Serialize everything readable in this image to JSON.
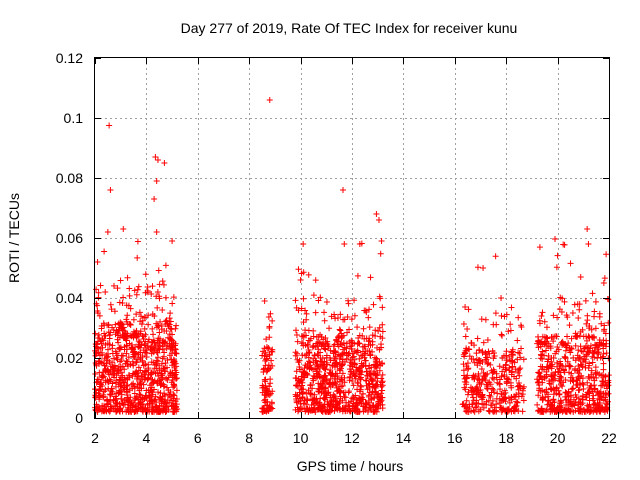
{
  "chart_data": {
    "type": "scatter",
    "title": "Day 277 of 2019, Rate Of TEC Index for receiver kunu",
    "xlabel": "GPS time / hours",
    "ylabel": "ROTI / TECUs",
    "xlim": [
      2,
      22
    ],
    "ylim": [
      0,
      0.12
    ],
    "grid": true,
    "marker": "+",
    "color": "#ff0000",
    "x_ticks": [
      2,
      4,
      6,
      8,
      10,
      12,
      14,
      16,
      18,
      20,
      22
    ],
    "x_tick_labels": [
      "2",
      "4",
      "6",
      "8",
      "10",
      "12",
      "14",
      "16",
      "18",
      "20",
      "22"
    ],
    "y_ticks": [
      0,
      0.02,
      0.04,
      0.06,
      0.08,
      0.1,
      0.12
    ],
    "y_tick_labels": [
      "0",
      "0.02",
      "0.04",
      "0.06",
      "0.08",
      "0.1",
      "0.12"
    ],
    "clusters": [
      {
        "x_range": [
          2.0,
          5.2
        ],
        "y_typical_max": 0.035,
        "count": 900
      },
      {
        "x_range": [
          8.5,
          8.9
        ],
        "y_typical_max": 0.025,
        "count": 90
      },
      {
        "x_range": [
          9.8,
          13.2
        ],
        "y_typical_max": 0.03,
        "count": 800
      },
      {
        "x_range": [
          16.3,
          18.7
        ],
        "y_typical_max": 0.025,
        "count": 350
      },
      {
        "x_range": [
          19.2,
          22.0
        ],
        "y_typical_max": 0.03,
        "count": 600
      }
    ],
    "notable_points": [
      {
        "x": 2.55,
        "y": 0.0975
      },
      {
        "x": 2.6,
        "y": 0.076
      },
      {
        "x": 2.5,
        "y": 0.062
      },
      {
        "x": 3.1,
        "y": 0.063
      },
      {
        "x": 2.1,
        "y": 0.052
      },
      {
        "x": 4.35,
        "y": 0.087
      },
      {
        "x": 4.45,
        "y": 0.086
      },
      {
        "x": 4.7,
        "y": 0.085
      },
      {
        "x": 4.4,
        "y": 0.079
      },
      {
        "x": 4.3,
        "y": 0.073
      },
      {
        "x": 4.4,
        "y": 0.062
      },
      {
        "x": 5.0,
        "y": 0.059
      },
      {
        "x": 8.8,
        "y": 0.106
      },
      {
        "x": 8.6,
        "y": 0.039
      },
      {
        "x": 10.1,
        "y": 0.058
      },
      {
        "x": 10.0,
        "y": 0.046
      },
      {
        "x": 11.65,
        "y": 0.076
      },
      {
        "x": 11.7,
        "y": 0.058
      },
      {
        "x": 12.95,
        "y": 0.068
      },
      {
        "x": 13.05,
        "y": 0.066
      },
      {
        "x": 13.15,
        "y": 0.059
      },
      {
        "x": 17.1,
        "y": 0.05
      },
      {
        "x": 17.8,
        "y": 0.04
      },
      {
        "x": 16.4,
        "y": 0.037
      },
      {
        "x": 21.15,
        "y": 0.063
      },
      {
        "x": 21.2,
        "y": 0.058
      },
      {
        "x": 20.9,
        "y": 0.047
      },
      {
        "x": 21.8,
        "y": 0.045
      }
    ]
  }
}
